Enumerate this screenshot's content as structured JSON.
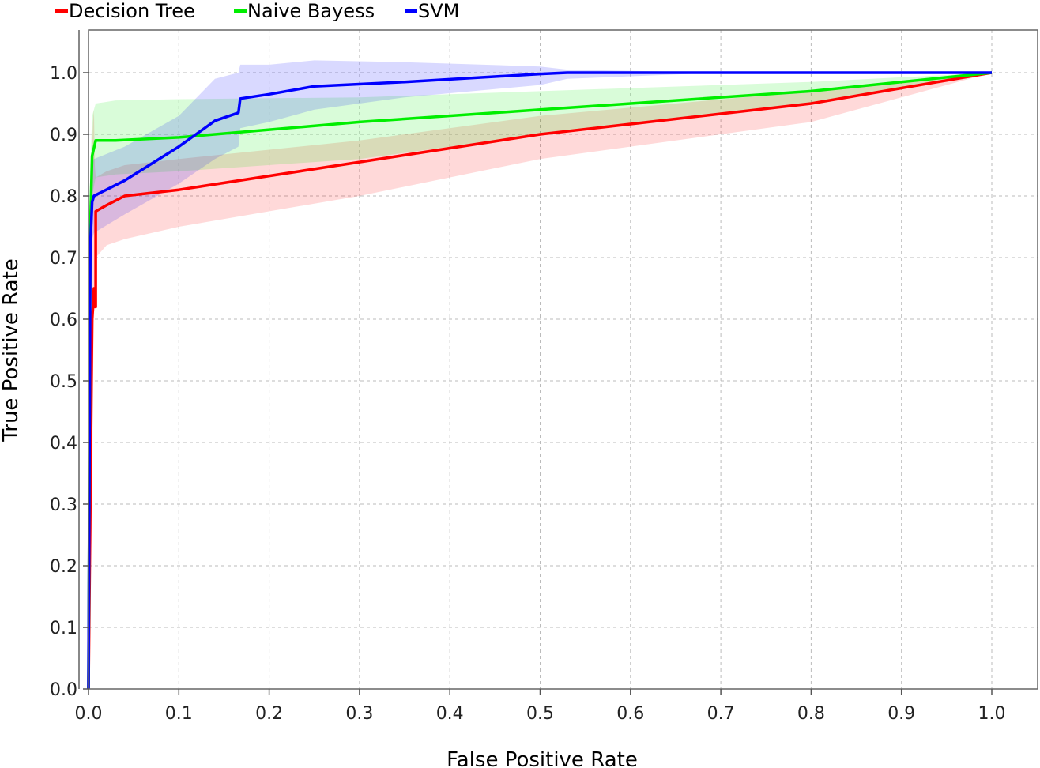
{
  "chart_data": {
    "type": "line",
    "title": "",
    "xlabel": "False Positive Rate",
    "ylabel": "True Positive Rate",
    "xlim": [
      0,
      1.05
    ],
    "ylim": [
      0,
      1.05
    ],
    "xticks": [
      "0.0",
      "0.1",
      "0.2",
      "0.3",
      "0.4",
      "0.5",
      "0.6",
      "0.7",
      "0.8",
      "0.9",
      "1.0"
    ],
    "yticks": [
      "0.0",
      "0.1",
      "0.2",
      "0.3",
      "0.4",
      "0.5",
      "0.6",
      "0.7",
      "0.8",
      "0.9",
      "1.0"
    ],
    "grid": true,
    "legend_position": "top-left",
    "series": [
      {
        "name": "Decision Tree",
        "color": "#ff0000",
        "x": [
          0.0,
          0.004,
          0.005,
          0.006,
          0.007,
          0.008,
          0.008,
          0.02,
          0.04,
          0.1,
          0.3,
          0.5,
          0.8,
          1.0
        ],
        "y": [
          0.0,
          0.6,
          0.62,
          0.65,
          0.62,
          0.62,
          0.775,
          0.785,
          0.8,
          0.81,
          0.855,
          0.9,
          0.95,
          1.0
        ],
        "band_upper": [
          0.0,
          0.88,
          0.92,
          0.94,
          0.85,
          0.83,
          0.83,
          0.84,
          0.85,
          0.86,
          0.89,
          0.93,
          0.97,
          1.0
        ],
        "band_lower": [
          0.0,
          0.3,
          0.5,
          0.6,
          0.65,
          0.7,
          0.7,
          0.72,
          0.73,
          0.75,
          0.8,
          0.86,
          0.92,
          1.0
        ]
      },
      {
        "name": "Naive Bayess",
        "color": "#00ee00",
        "x": [
          0.0,
          0.002,
          0.004,
          0.008,
          0.03,
          0.1,
          0.3,
          0.5,
          0.8,
          1.0
        ],
        "y": [
          0.0,
          0.75,
          0.865,
          0.89,
          0.89,
          0.895,
          0.92,
          0.94,
          0.97,
          1.0
        ],
        "band_upper": [
          0.0,
          0.85,
          0.93,
          0.95,
          0.955,
          0.957,
          0.96,
          0.97,
          0.985,
          1.0
        ],
        "band_lower": [
          0.0,
          0.6,
          0.8,
          0.83,
          0.835,
          0.84,
          0.86,
          0.9,
          0.95,
          1.0
        ]
      },
      {
        "name": "SVM",
        "color": "#0000ff",
        "x": [
          0.0,
          0.002,
          0.004,
          0.006,
          0.04,
          0.1,
          0.14,
          0.166,
          0.168,
          0.2,
          0.25,
          0.35,
          0.5,
          0.53,
          0.7,
          1.0
        ],
        "y": [
          0.0,
          0.72,
          0.79,
          0.8,
          0.825,
          0.88,
          0.922,
          0.935,
          0.958,
          0.965,
          0.978,
          0.985,
          0.998,
          1.0,
          1.0,
          1.0
        ],
        "band_upper": [
          0.0,
          0.8,
          0.85,
          0.86,
          0.88,
          0.93,
          0.99,
          1.0,
          1.013,
          1.013,
          1.02,
          1.017,
          1.01,
          1.005,
          1.0,
          1.0
        ],
        "band_lower": [
          0.0,
          0.65,
          0.73,
          0.74,
          0.77,
          0.82,
          0.86,
          0.88,
          0.91,
          0.92,
          0.94,
          0.96,
          0.98,
          0.99,
          1.0,
          1.0
        ]
      }
    ]
  }
}
